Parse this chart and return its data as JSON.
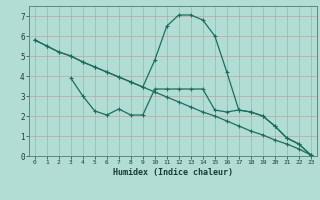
{
  "title": "",
  "xlabel": "Humidex (Indice chaleur)",
  "bg_color": "#b2ddd4",
  "grid_color": "#d4eeea",
  "line_color": "#1a6e60",
  "xlim": [
    -0.5,
    23.5
  ],
  "ylim": [
    0,
    7.5
  ],
  "xticks": [
    0,
    1,
    2,
    3,
    4,
    5,
    6,
    7,
    8,
    9,
    10,
    11,
    12,
    13,
    14,
    15,
    16,
    17,
    18,
    19,
    20,
    21,
    22,
    23
  ],
  "yticks": [
    0,
    1,
    2,
    3,
    4,
    5,
    6,
    7
  ],
  "line1_x": [
    0,
    1,
    2,
    3,
    4,
    5,
    6,
    7,
    8,
    9,
    10,
    11,
    12,
    13,
    14,
    15,
    16,
    17,
    18,
    19,
    20,
    21,
    22,
    23
  ],
  "line1_y": [
    5.8,
    5.5,
    5.2,
    5.0,
    4.7,
    4.45,
    4.2,
    3.95,
    3.7,
    3.45,
    3.2,
    2.95,
    2.7,
    2.45,
    2.2,
    2.0,
    1.75,
    1.5,
    1.25,
    1.05,
    0.8,
    0.6,
    0.35,
    0.05
  ],
  "line2_x": [
    0,
    1,
    2,
    3,
    4,
    5,
    6,
    7,
    8,
    9,
    10,
    11,
    12,
    13,
    14,
    15,
    16,
    17,
    18,
    19,
    20,
    21,
    22,
    23
  ],
  "line2_y": [
    5.8,
    5.5,
    5.2,
    5.0,
    4.7,
    4.45,
    4.2,
    3.95,
    3.7,
    3.45,
    4.8,
    6.5,
    7.05,
    7.05,
    6.8,
    6.0,
    4.2,
    2.3,
    2.2,
    2.0,
    1.5,
    0.9,
    0.6,
    0.05
  ],
  "line3_x": [
    3,
    4,
    5,
    6,
    7,
    8,
    9,
    10,
    11,
    12,
    13,
    14,
    15,
    16,
    17,
    18,
    19,
    20,
    21,
    22,
    23
  ],
  "line3_y": [
    3.9,
    3.0,
    2.25,
    2.05,
    2.35,
    2.05,
    2.05,
    3.35,
    3.35,
    3.35,
    3.35,
    3.35,
    2.3,
    2.2,
    2.3,
    2.2,
    2.0,
    1.5,
    0.9,
    0.6,
    0.05
  ]
}
